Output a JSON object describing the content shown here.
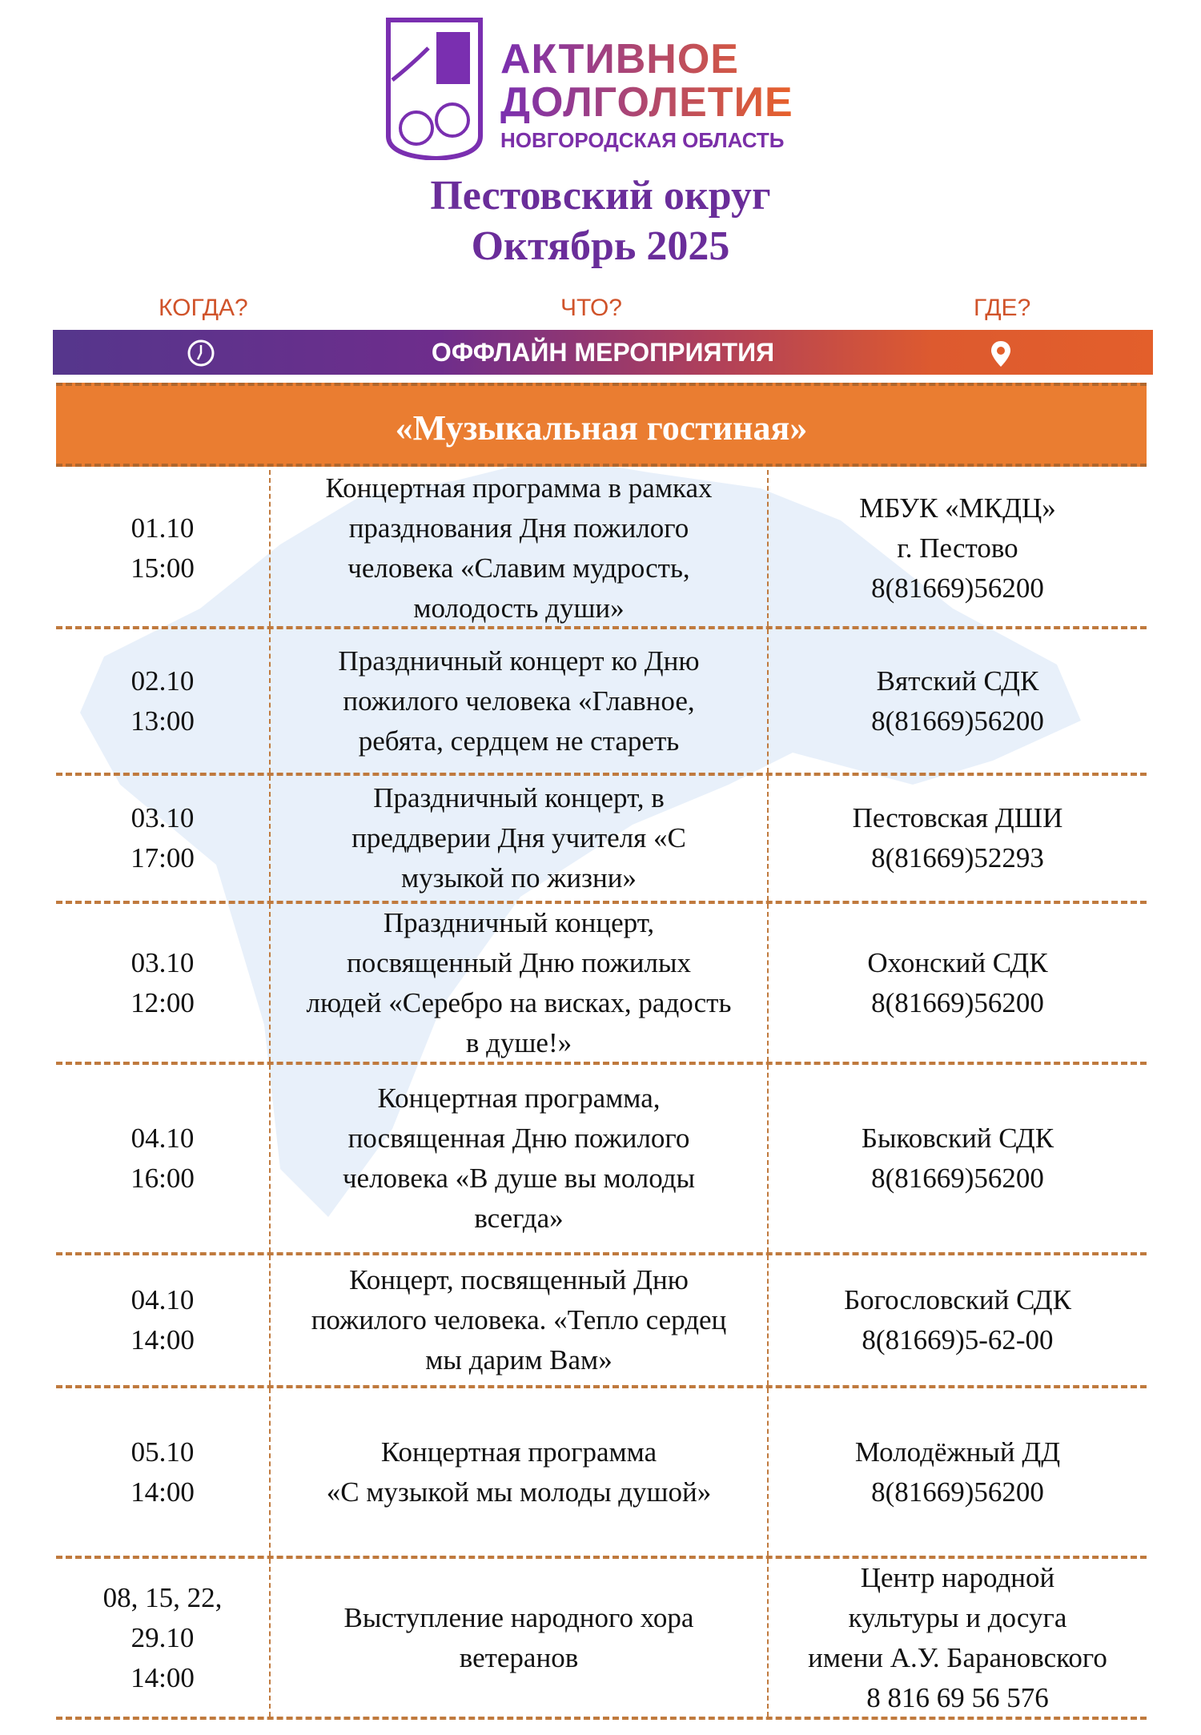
{
  "logo": {
    "line1": "АКТИВНОЕ",
    "line2": "ДОЛГОЛЕТИЕ",
    "line3": "НОВГОРОДСКАЯ ОБЛАСТЬ"
  },
  "title": {
    "district": "Пестовский округ",
    "month": "Октябрь 2025"
  },
  "columns": {
    "when": "КОГДА?",
    "what": "ЧТО?",
    "where": "ГДЕ?"
  },
  "band": {
    "label": "ОФФЛАЙН МЕРОПРИЯТИЯ",
    "left_icon": "clock-icon",
    "right_icon": "map-pin-icon"
  },
  "colors": {
    "purple": "#6a2d9a",
    "orange": "#ea7d31",
    "divider": "#c07a3e"
  },
  "section_title": "«Музыкальная гостиная»",
  "events": [
    {
      "when": "01.10\n15:00",
      "what": "Концертная программа в рамках\nпразднования Дня пожилого\nчеловека «Славим мудрость,\nмолодость души»",
      "where": "МБУК «МКДЦ»\nг. Пестово\n8(81669)56200"
    },
    {
      "when": "02.10\n13:00",
      "what": "Праздничный концерт ко Дню\nпожилого человека «Главное,\nребята, сердцем не стареть",
      "where": "Вятский СДК\n8(81669)56200"
    },
    {
      "when": "03.10\n17:00",
      "what": "Праздничный концерт, в\nпреддверии Дня учителя «С\nмузыкой по жизни»",
      "where": "Пестовская ДШИ\n8(81669)52293"
    },
    {
      "when": "03.10\n12:00",
      "what": "Праздничный концерт,\nпосвященный Дню пожилых\nлюдей «Серебро на висках, радость\nв душе!»",
      "where": "Охонский СДК\n8(81669)56200"
    },
    {
      "when": "04.10\n16:00",
      "what": "Концертная программа,\nпосвященная Дню пожилого\nчеловека «В душе вы молоды\nвсегда»",
      "where": "Быковский СДК\n8(81669)56200"
    },
    {
      "when": "04.10\n14:00",
      "what": "Концерт, посвященный Дню\nпожилого человека. «Тепло сердец\nмы дарим Вам»",
      "where": "Богословский СДК\n8(81669)5-62-00"
    },
    {
      "when": "05.10\n14:00",
      "what": "Концертная программа\n«С музыкой мы молоды душой»",
      "where": "Молодёжный ДД\n8(81669)56200"
    },
    {
      "when": "08, 15, 22,\n29.10\n14:00",
      "what": "Выступление народного хора\nветеранов",
      "where": "Центр  народной\nкультуры  и  досуга\nимени А.У. Барановского\n8 816 69 56 576"
    }
  ]
}
